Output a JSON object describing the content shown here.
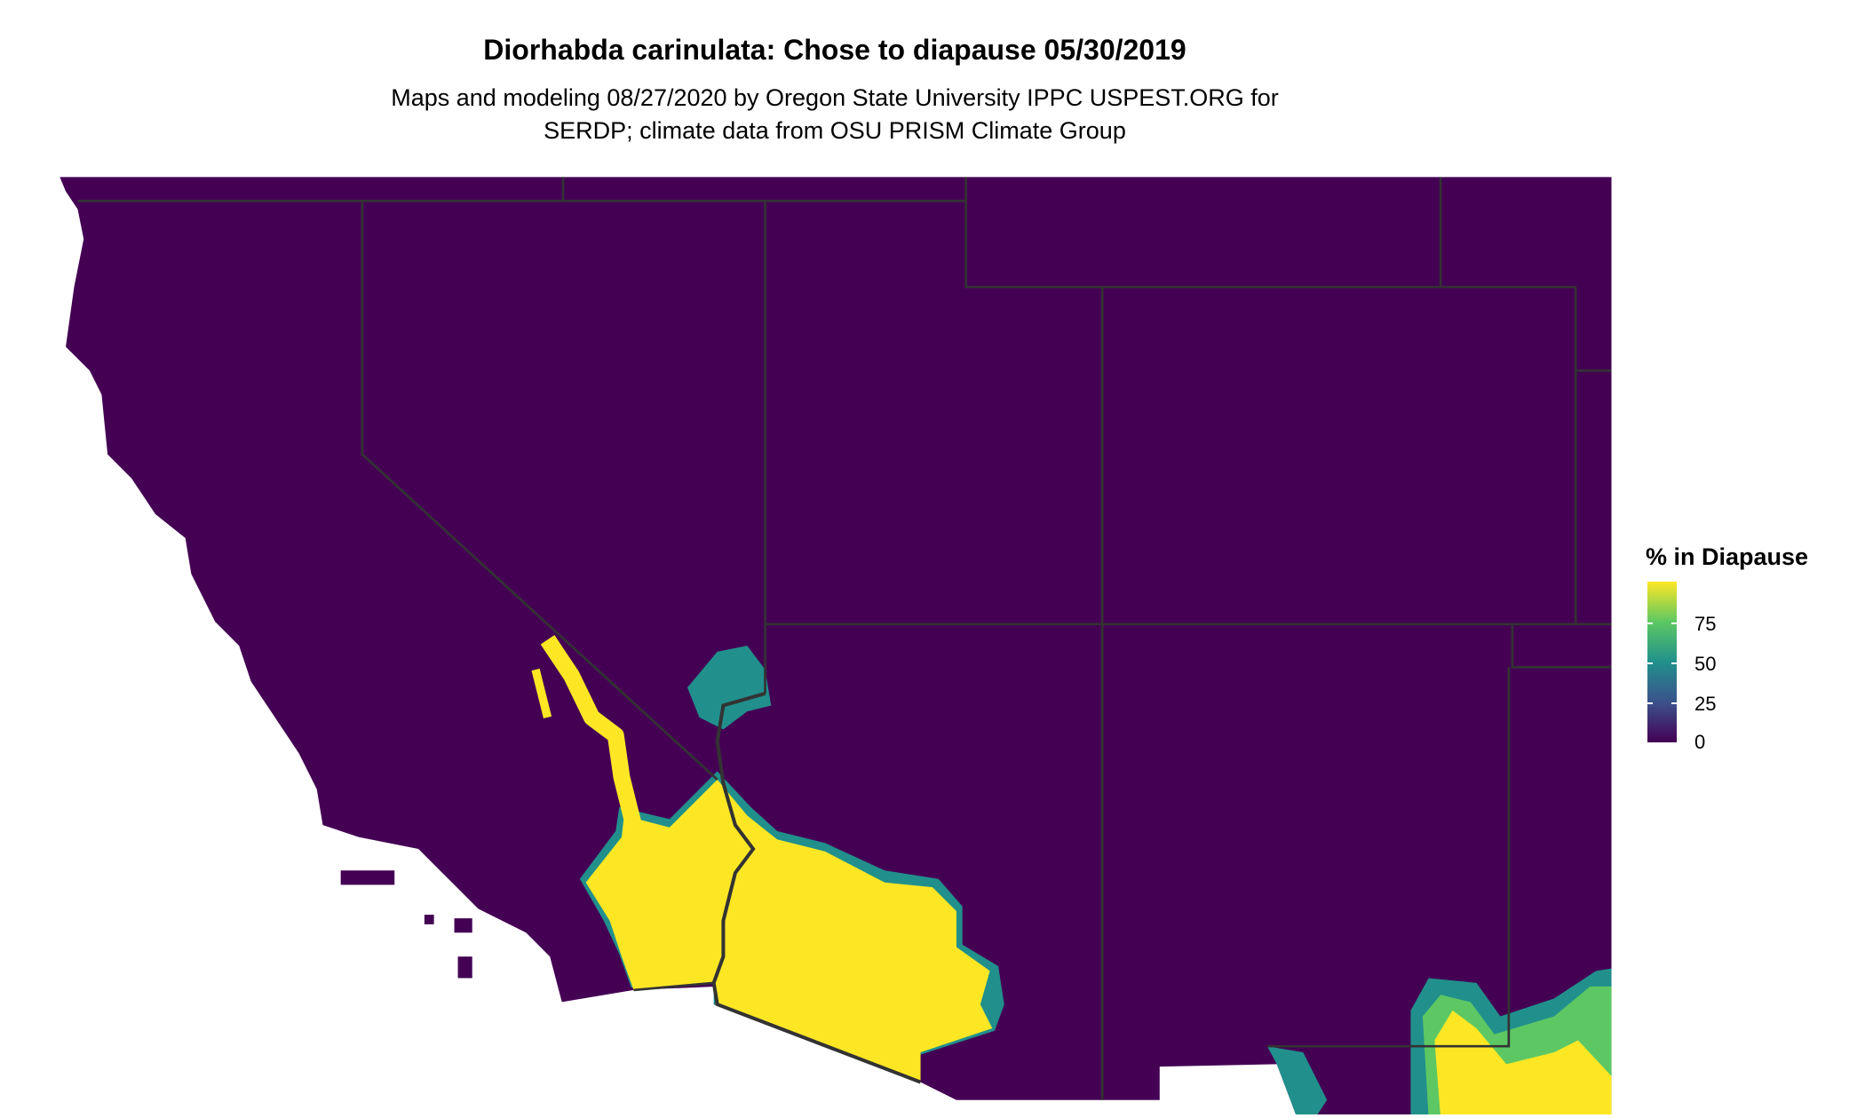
{
  "title": "Diorhabda carinulata: Chose to diapause 05/30/2019",
  "subtitle_lines": [
    "Maps and modeling 08/27/2020 by Oregon State University IPPC USPEST.ORG for",
    "SERDP; climate data from OSU PRISM Climate Group"
  ],
  "legend": {
    "title": "% in Diapause",
    "ticks": [
      "0",
      "25",
      "50",
      "75"
    ],
    "range": [
      0,
      100
    ],
    "colors": [
      "#440154",
      "#3b528b",
      "#21908c",
      "#5dc863",
      "#fde725"
    ]
  },
  "map": {
    "land_color": "#440154",
    "high_color": "#fde725",
    "border_color": "#333333"
  }
}
